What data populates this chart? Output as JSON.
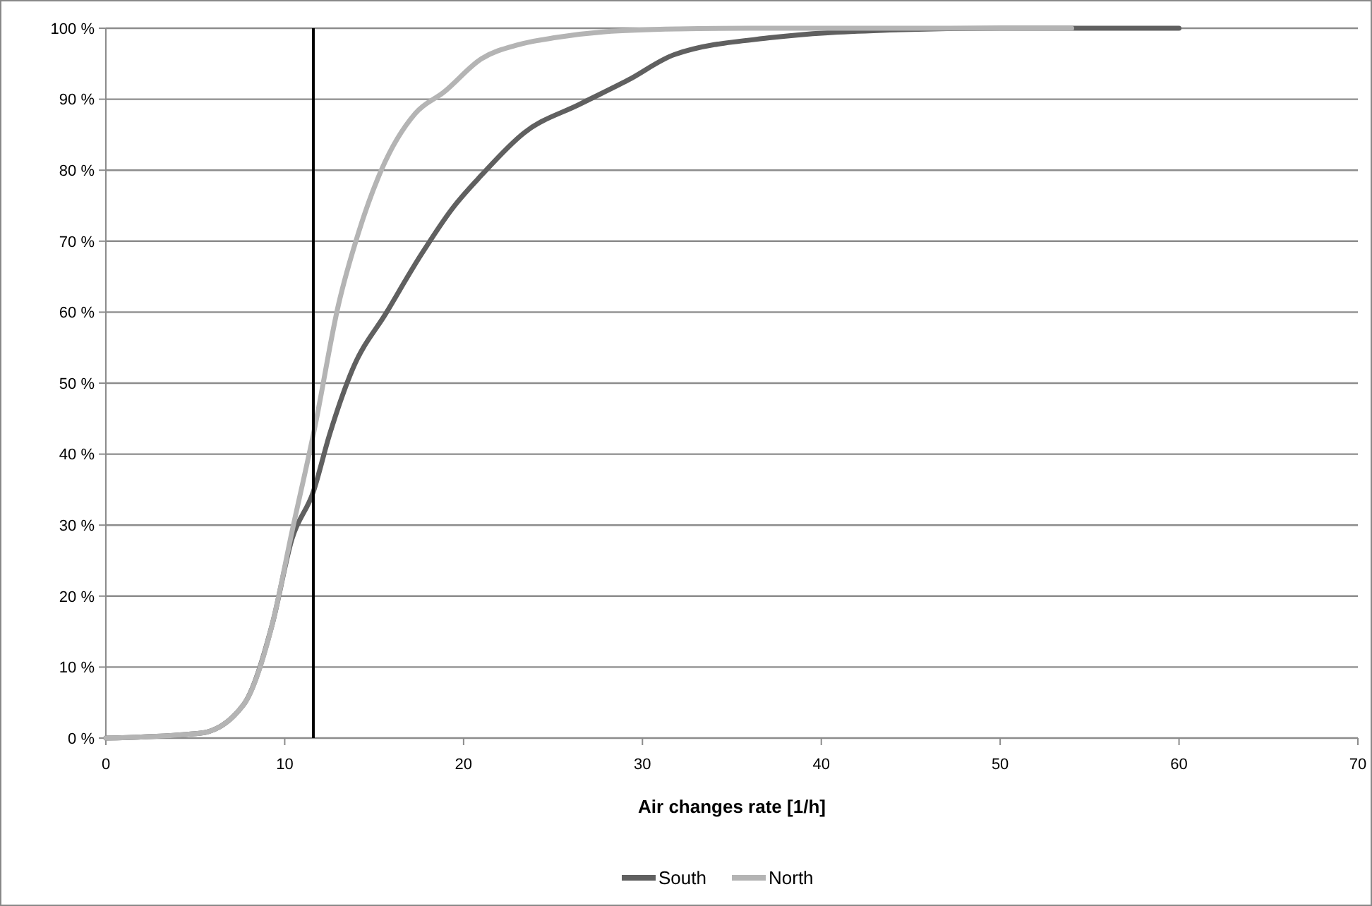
{
  "chart_data": {
    "type": "line",
    "xlabel": "Air changes rate [1/h]",
    "xlim": [
      0,
      70
    ],
    "xticks": [
      0,
      10,
      20,
      30,
      40,
      50,
      60,
      70
    ],
    "ylim": [
      0,
      100
    ],
    "yticks": [
      {
        "value": 0,
        "label": "0 %"
      },
      {
        "value": 10,
        "label": "10 %"
      },
      {
        "value": 20,
        "label": "20 %"
      },
      {
        "value": 30,
        "label": "30 %"
      },
      {
        "value": 40,
        "label": "40 %"
      },
      {
        "value": 50,
        "label": "50 %"
      },
      {
        "value": 60,
        "label": "60 %"
      },
      {
        "value": 70,
        "label": "70 %"
      },
      {
        "value": 80,
        "label": "80 %"
      },
      {
        "value": 90,
        "label": "90 %"
      },
      {
        "value": 100,
        "label": "100 %"
      }
    ],
    "grid": "y",
    "legend": "bottom",
    "marker": "none",
    "line_style": "solid",
    "ref_lines": [
      {
        "axis": "x",
        "value": 11.6,
        "color": "#000000"
      }
    ],
    "series": [
      {
        "name": "South",
        "color": "#606060",
        "x": [
          0,
          5.3,
          7.7,
          9.3,
          10.4,
          11.6,
          12.5,
          13.8,
          15.7,
          17.6,
          19.4,
          21.0,
          23.4,
          26.5,
          29.2,
          31.8,
          37.3,
          43.4,
          50,
          60
        ],
        "values": [
          0,
          0.7,
          4.7,
          16,
          28,
          34.7,
          42.7,
          52,
          60,
          68,
          74.7,
          79.3,
          85.3,
          89.3,
          92.7,
          96.3,
          98.7,
          99.7,
          100,
          100
        ]
      },
      {
        "name": "North",
        "color": "#b4b4b4",
        "x": [
          0,
          5.3,
          7.7,
          9.3,
          10.4,
          11.7,
          13.0,
          14.1,
          15.4,
          17.3,
          18.9,
          21.0,
          23.1,
          25.2,
          27.9,
          32,
          36,
          54
        ],
        "values": [
          0,
          0.7,
          4.7,
          16,
          29,
          44,
          61,
          71,
          80,
          88,
          91,
          95.7,
          97.7,
          98.7,
          99.5,
          99.9,
          100,
          100
        ]
      }
    ]
  }
}
